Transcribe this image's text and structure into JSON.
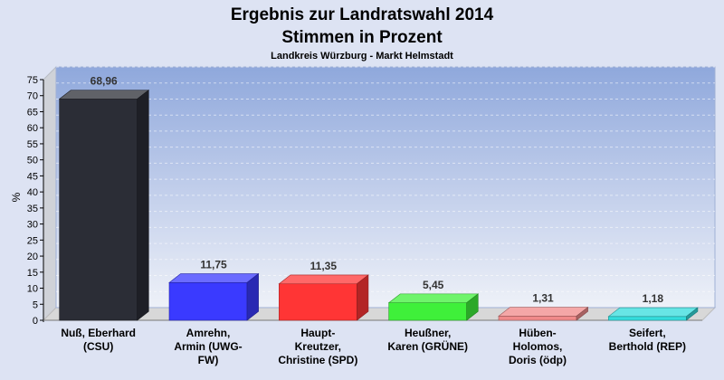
{
  "chart_data": {
    "type": "bar",
    "title": "Ergebnis zur Landratswahl 2014",
    "title_line2": "Stimmen in Prozent",
    "subtitle": "Landkreis Würzburg - Markt Helmstadt",
    "ylabel": "%",
    "ylim": [
      0,
      75
    ],
    "yticks": [
      "0",
      "5",
      "10",
      "15",
      "20",
      "25",
      "30",
      "35",
      "40",
      "45",
      "50",
      "55",
      "60",
      "65",
      "70",
      "75"
    ],
    "grid": true,
    "categories": [
      [
        "Nuß, Eberhard",
        "(CSU)"
      ],
      [
        "Amrehn,",
        "Armin (UWG-",
        "FW)"
      ],
      [
        "Haupt-",
        "Kreutzer,",
        "Christine (SPD)"
      ],
      [
        "Heußner,",
        "Karen (GRÜNE)"
      ],
      [
        "Hüben-",
        "Holomos,",
        "Doris (ödp)"
      ],
      [
        "Seifert,",
        "Berthold (REP)"
      ]
    ],
    "values": [
      68.96,
      11.75,
      11.35,
      5.45,
      1.31,
      1.18
    ],
    "value_labels": [
      "68,96",
      "11,75",
      "11,35",
      "5,45",
      "1,31",
      "1,18"
    ],
    "colors": [
      "#2b2d36",
      "#3a3aff",
      "#ff3535",
      "#3ff03a",
      "#f08a8a",
      "#34dcdc"
    ]
  }
}
